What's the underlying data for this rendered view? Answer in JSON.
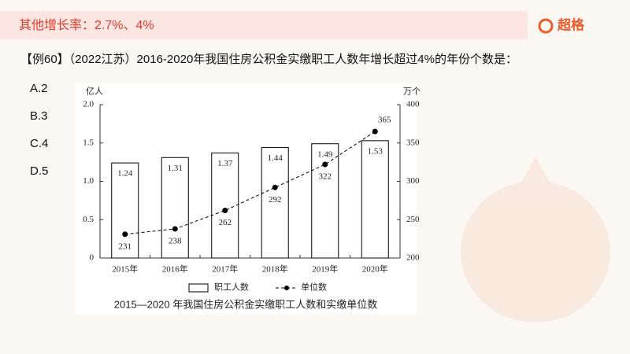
{
  "header": {
    "title": "其他增长率：2.7%、4%",
    "logo": "超格"
  },
  "question": "【例60】（2022江苏）2016-2020年我国住房公积金实缴职工人数年增长超过4%的年份个数是：",
  "options": [
    "A.2",
    "B.3",
    "C.4",
    "D.5"
  ],
  "chart_data": {
    "type": "bar",
    "title": "2015—2020 年我国住房公积金实缴职工人数和实缴单位数",
    "y_label": "亿人",
    "y2_label": "万个",
    "categories": [
      "2015年",
      "2016年",
      "2017年",
      "2018年",
      "2019年",
      "2020年"
    ],
    "series": [
      {
        "name": "职工人数",
        "type": "bar",
        "color": "#000000",
        "values": [
          1.24,
          1.31,
          1.37,
          1.44,
          1.49,
          1.53
        ]
      },
      {
        "name": "单位数",
        "type": "line",
        "axis": "y2",
        "color": "#000000",
        "values": [
          231,
          238,
          262,
          292,
          322,
          365
        ]
      }
    ],
    "ylim": [
      0,
      2.0
    ],
    "yticks": [
      0,
      0.5,
      {
        "value": 1.0,
        "label": "1.0"
      },
      1.5,
      {
        "value": 2.0,
        "label": "2.0"
      }
    ],
    "y2lim": [
      200,
      400
    ],
    "y2ticks": [
      200,
      250,
      300,
      350,
      400
    ],
    "grid": false,
    "legend": "bottom"
  }
}
